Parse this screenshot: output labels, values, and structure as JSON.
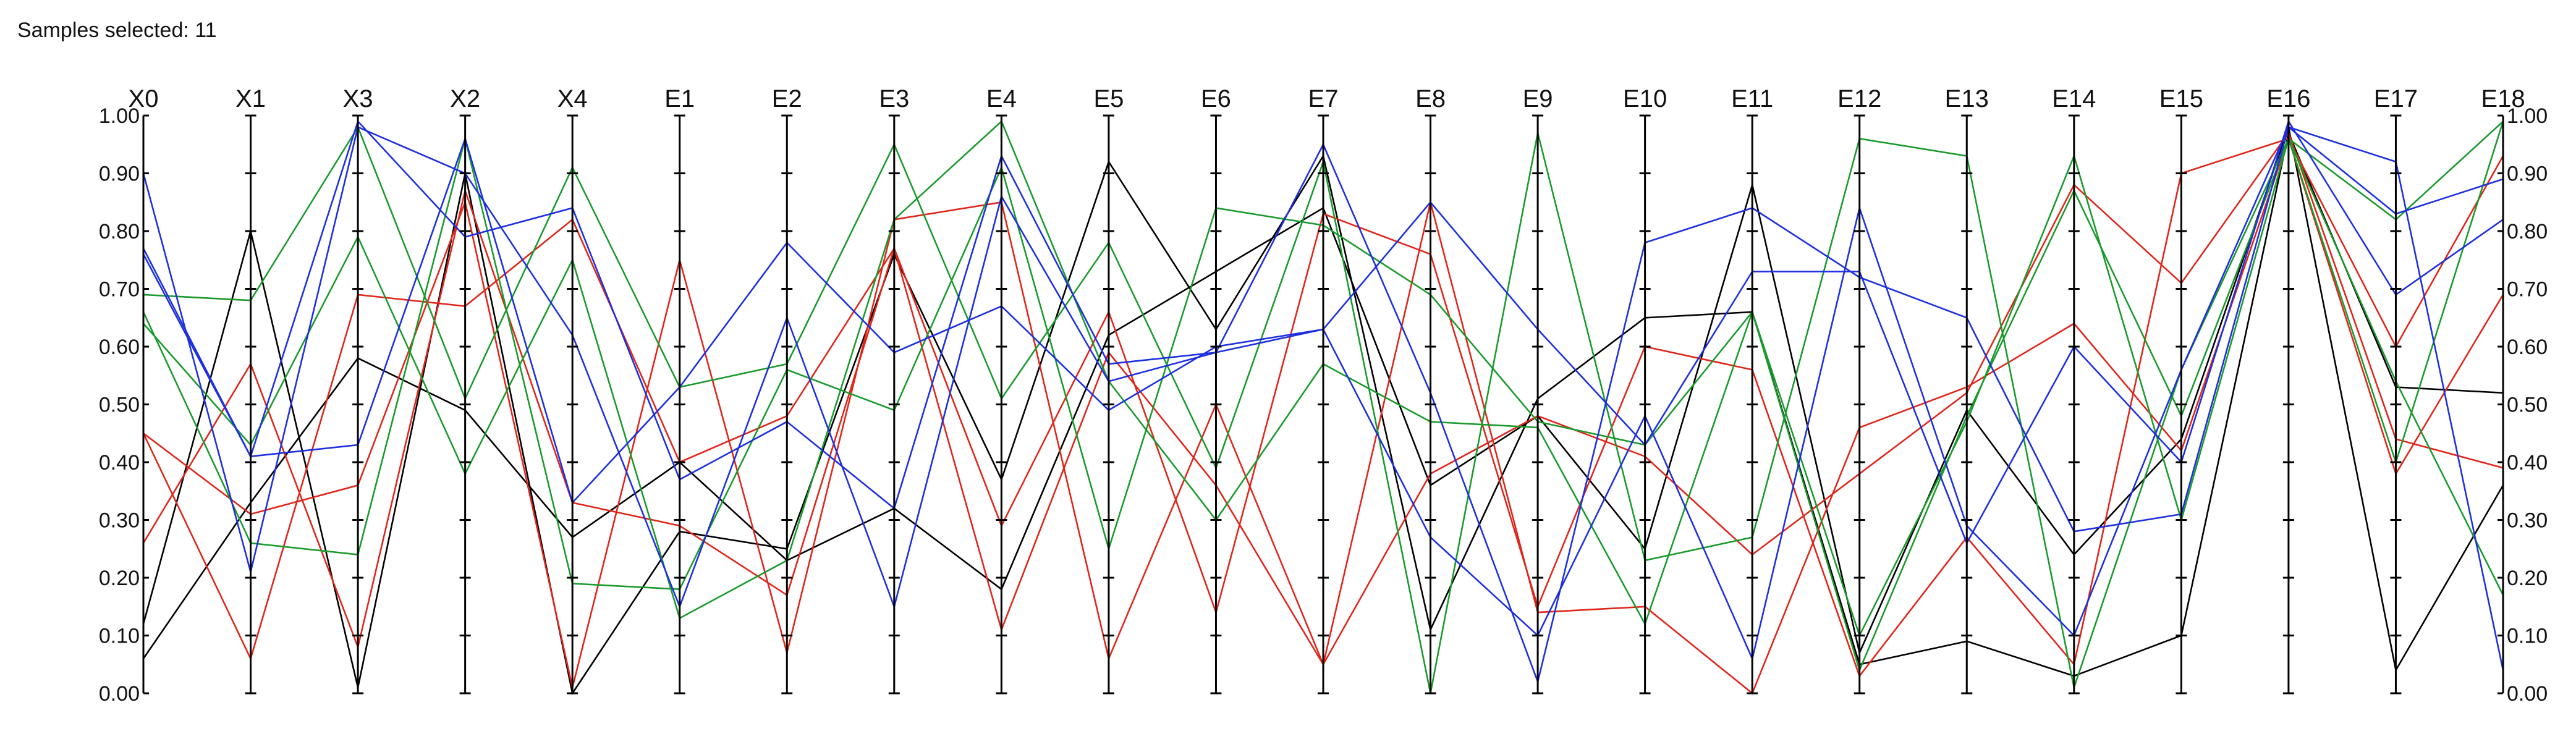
{
  "header": {
    "label": "Samples selected:",
    "count": "11"
  },
  "chart_data": {
    "type": "line",
    "title": "",
    "xlabel": "",
    "ylabel": "",
    "ylim": [
      0,
      1
    ],
    "yticks": [
      "0.00",
      "0.10",
      "0.20",
      "0.30",
      "0.40",
      "0.50",
      "0.60",
      "0.70",
      "0.80",
      "0.90",
      "1.00"
    ],
    "categories": [
      "X0",
      "X1",
      "X3",
      "X2",
      "X4",
      "E1",
      "E2",
      "E3",
      "E4",
      "E5",
      "E6",
      "E7",
      "E8",
      "E9",
      "E10",
      "E11",
      "E12",
      "E13",
      "E14",
      "E15",
      "E16",
      "E17",
      "E18"
    ],
    "highlighted_axis": "E16",
    "highlight_color": "#e0261b",
    "series": [
      {
        "color": "#000000",
        "values": [
          0.06,
          0.33,
          0.58,
          0.49,
          0.27,
          0.4,
          0.23,
          0.32,
          0.18,
          0.62,
          0.73,
          0.84,
          0.36,
          0.48,
          0.25,
          0.88,
          0.07,
          0.49,
          0.24,
          0.44,
          0.98,
          0.04,
          0.36
        ]
      },
      {
        "color": "#000000",
        "values": [
          0.12,
          0.8,
          0.01,
          0.9,
          0.0,
          0.28,
          0.25,
          0.76,
          0.37,
          0.92,
          0.63,
          0.93,
          0.11,
          0.51,
          0.65,
          0.66,
          0.05,
          0.09,
          0.03,
          0.1,
          0.97,
          0.53,
          0.52
        ]
      },
      {
        "color": "#e0261b",
        "values": [
          0.45,
          0.31,
          0.36,
          0.85,
          0.01,
          0.75,
          0.07,
          0.82,
          0.85,
          0.06,
          0.5,
          0.05,
          0.85,
          0.14,
          0.15,
          0.0,
          0.46,
          0.53,
          0.64,
          0.42,
          0.96,
          0.38,
          0.69
        ]
      },
      {
        "color": "#e0261b",
        "values": [
          0.45,
          0.06,
          0.69,
          0.67,
          0.82,
          0.4,
          0.48,
          0.77,
          0.29,
          0.66,
          0.14,
          0.83,
          0.76,
          0.15,
          0.6,
          0.56,
          0.03,
          0.27,
          0.05,
          0.9,
          0.96,
          0.6,
          0.93
        ]
      },
      {
        "color": "#e0261b",
        "values": [
          0.26,
          0.57,
          0.08,
          0.87,
          0.33,
          0.29,
          0.17,
          0.77,
          0.11,
          0.59,
          0.36,
          0.05,
          0.38,
          0.48,
          0.41,
          0.24,
          0.38,
          0.52,
          0.88,
          0.71,
          0.97,
          0.44,
          0.39
        ]
      },
      {
        "color": "#1a9a2c",
        "values": [
          0.69,
          0.68,
          0.98,
          0.51,
          0.91,
          0.53,
          0.57,
          0.95,
          0.51,
          0.78,
          0.39,
          0.92,
          0.0,
          0.97,
          0.23,
          0.27,
          0.96,
          0.93,
          0.01,
          0.56,
          0.96,
          0.82,
          0.99
        ]
      },
      {
        "color": "#1a9a2c",
        "values": [
          0.66,
          0.26,
          0.24,
          0.96,
          0.19,
          0.18,
          0.56,
          0.49,
          0.91,
          0.25,
          0.84,
          0.81,
          0.69,
          0.47,
          0.43,
          0.66,
          0.1,
          0.47,
          0.93,
          0.3,
          0.96,
          0.54,
          0.17
        ]
      },
      {
        "color": "#1a9a2c",
        "values": [
          0.64,
          0.43,
          0.79,
          0.38,
          0.75,
          0.13,
          0.23,
          0.82,
          0.99,
          0.54,
          0.3,
          0.57,
          0.47,
          0.46,
          0.12,
          0.66,
          0.04,
          0.48,
          0.87,
          0.48,
          0.96,
          0.4,
          0.99
        ]
      },
      {
        "color": "#1d2fe0",
        "values": [
          0.9,
          0.21,
          0.98,
          0.9,
          0.62,
          0.15,
          0.65,
          0.15,
          0.86,
          0.54,
          0.59,
          0.95,
          0.52,
          0.02,
          0.78,
          0.84,
          0.72,
          0.65,
          0.28,
          0.31,
          0.98,
          0.92,
          0.04
        ]
      },
      {
        "color": "#1d2fe0",
        "values": [
          0.77,
          0.41,
          0.43,
          0.96,
          0.33,
          0.53,
          0.78,
          0.59,
          0.67,
          0.49,
          0.6,
          0.63,
          0.27,
          0.1,
          0.48,
          0.06,
          0.84,
          0.29,
          0.1,
          0.56,
          0.98,
          0.83,
          0.89
        ]
      },
      {
        "color": "#1d2fe0",
        "values": [
          0.76,
          0.41,
          0.99,
          0.79,
          0.84,
          0.37,
          0.47,
          0.32,
          0.93,
          0.57,
          0.59,
          0.63,
          0.85,
          0.63,
          0.43,
          0.73,
          0.73,
          0.26,
          0.6,
          0.4,
          0.99,
          0.69,
          0.82
        ]
      }
    ]
  }
}
